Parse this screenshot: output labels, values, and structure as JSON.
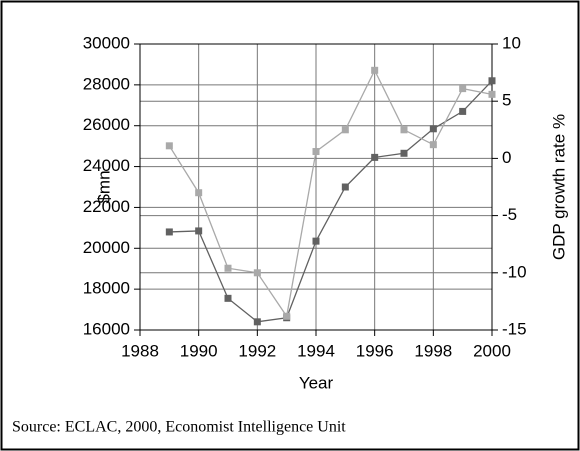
{
  "chart_data": {
    "type": "line",
    "x": [
      1989,
      1990,
      1991,
      1992,
      1993,
      1994,
      1995,
      1996,
      1997,
      1998,
      1999,
      2000
    ],
    "series": [
      {
        "name": "$mn",
        "color": "#616161",
        "values": [
          20800,
          20850,
          17550,
          16400,
          16600,
          20350,
          23000,
          24450,
          24650,
          25850,
          26700,
          28200
        ]
      },
      {
        "name": "GDP growth rate %",
        "color": "#a9a9a9",
        "axis": "y2",
        "values": [
          1.1,
          -3.0,
          -9.6,
          -10.0,
          -13.8,
          0.6,
          2.5,
          7.7,
          2.5,
          1.2,
          6.1,
          5.6
        ]
      }
    ],
    "xlabel": "Year",
    "ylabel": "$mn",
    "y2label": "GDP growth rate %",
    "xlim": [
      1988,
      2000
    ],
    "xticks": [
      1988,
      1990,
      1992,
      1994,
      1996,
      1998,
      2000
    ],
    "ylim": [
      16000,
      30000
    ],
    "yticks": [
      16000,
      18000,
      20000,
      22000,
      24000,
      26000,
      28000,
      30000
    ],
    "y2lim": [
      -15,
      10
    ],
    "y2ticks": [
      -15,
      -10,
      -5,
      0,
      5,
      10
    ],
    "grid": true,
    "source": "Source: ECLAC, 2000, Economist Intelligence Unit"
  }
}
